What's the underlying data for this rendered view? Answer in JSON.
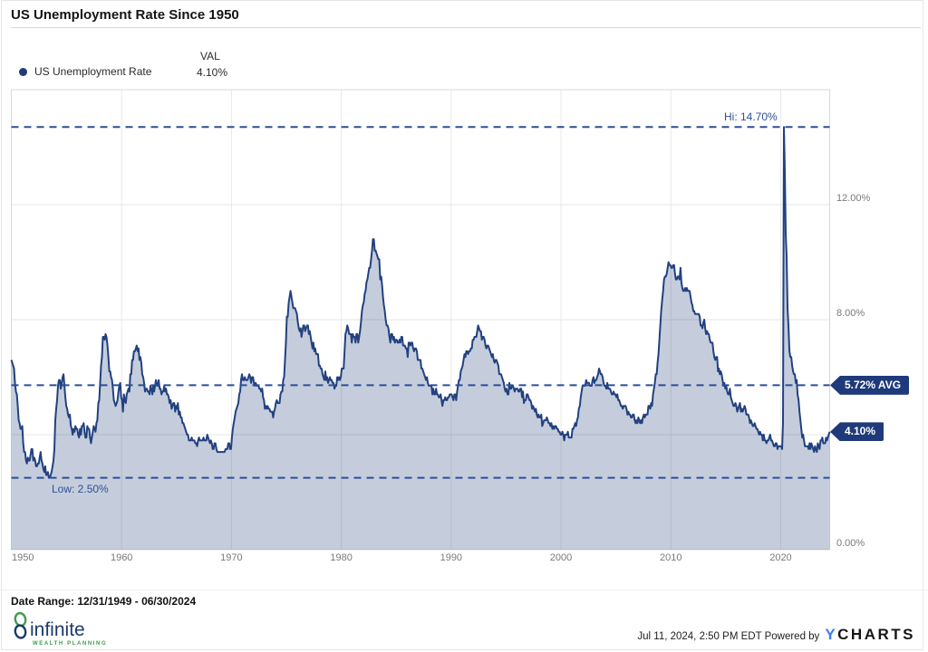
{
  "header": {
    "title": "US Unemployment Rate Since 1950"
  },
  "legend": {
    "series_label": "US Unemployment Rate",
    "val_header": "VAL",
    "val": "4.10%"
  },
  "chart_data": {
    "type": "area",
    "title": "US Unemployment Rate Since 1950",
    "series_name": "US Unemployment Rate",
    "unit": "percent",
    "x_domain": [
      1949.9583,
      2024.4583
    ],
    "ylim": [
      0,
      16
    ],
    "grid": true,
    "x_ticks": [
      1950,
      1960,
      1970,
      1980,
      1990,
      2000,
      2010,
      2020
    ],
    "x_tick_labels": [
      "1950",
      "1960",
      "1970",
      "1980",
      "1990",
      "2000",
      "2010",
      "2020"
    ],
    "y_gridlines": [
      4,
      8,
      12
    ],
    "y_ticks": [
      {
        "value": 0,
        "label": "0.00%"
      },
      {
        "value": 8,
        "label": "8.00%"
      },
      {
        "value": 12,
        "label": "12.00%"
      }
    ],
    "annotations": {
      "hi": {
        "label": "Hi: 14.70%",
        "value": 14.7
      },
      "low": {
        "label": "Low: 2.50%",
        "value": 2.5
      },
      "avg": {
        "label": "5.72% AVG",
        "value": 5.72
      },
      "last": {
        "label": "4.10%",
        "value": 4.1
      }
    },
    "colors": {
      "line": "#22417f",
      "fill": "rgba(30,60,125,0.26)",
      "dashed": "#2a4f97",
      "badge": "#1e3a7a",
      "grid": "#e5e5e5",
      "axis_text": "#7a7a7a"
    },
    "series_start": {
      "t": 1949.9583,
      "value": 6.6,
      "label": "12/31/1949"
    },
    "series_monthly": {
      "1950": [
        6.5,
        6.4,
        6.3,
        5.8,
        5.5,
        5.4,
        5.0,
        4.5,
        4.4,
        4.2,
        4.2,
        4.3
      ],
      "1951": [
        3.7,
        3.4,
        3.4,
        3.1,
        3.0,
        3.2,
        3.1,
        3.1,
        3.3,
        3.5,
        3.5,
        3.1
      ],
      "1952": [
        3.2,
        3.1,
        2.9,
        2.9,
        3.0,
        3.0,
        3.2,
        3.4,
        3.1,
        3.0,
        2.8,
        2.7
      ],
      "1953": [
        2.9,
        2.6,
        2.6,
        2.7,
        2.5,
        2.5,
        2.6,
        2.7,
        2.9,
        3.1,
        3.5,
        4.5
      ],
      "1954": [
        4.9,
        5.2,
        5.7,
        5.9,
        5.9,
        5.6,
        5.8,
        6.0,
        6.1,
        5.7,
        5.3,
        5.0
      ],
      "1955": [
        4.9,
        4.7,
        4.6,
        4.7,
        4.3,
        4.2,
        4.0,
        4.2,
        4.1,
        4.3,
        4.2,
        4.2
      ],
      "1956": [
        4.0,
        3.9,
        4.2,
        4.0,
        4.3,
        4.3,
        4.4,
        4.1,
        3.9,
        3.9,
        4.3,
        4.2
      ],
      "1957": [
        4.2,
        3.9,
        3.7,
        3.9,
        4.1,
        4.3,
        4.2,
        4.1,
        4.4,
        4.5,
        5.1,
        5.2
      ],
      "1958": [
        5.8,
        6.4,
        6.7,
        7.4,
        7.4,
        7.3,
        7.5,
        7.4,
        7.1,
        6.7,
        6.2,
        6.2
      ],
      "1959": [
        6.0,
        5.9,
        5.6,
        5.2,
        5.1,
        5.0,
        5.1,
        5.2,
        5.5,
        5.7,
        5.8,
        5.3
      ],
      "1960": [
        5.2,
        4.8,
        5.4,
        5.2,
        5.1,
        5.4,
        5.5,
        5.6,
        5.5,
        6.1,
        6.1,
        6.6
      ],
      "1961": [
        6.6,
        6.9,
        6.9,
        7.0,
        7.1,
        6.9,
        7.0,
        6.6,
        6.7,
        6.5,
        6.1,
        6.0
      ],
      "1962": [
        5.8,
        5.5,
        5.6,
        5.6,
        5.5,
        5.5,
        5.4,
        5.7,
        5.6,
        5.4,
        5.7,
        5.5
      ],
      "1963": [
        5.7,
        5.9,
        5.7,
        5.7,
        5.9,
        5.6,
        5.6,
        5.4,
        5.5,
        5.5,
        5.7,
        5.5
      ],
      "1964": [
        5.6,
        5.4,
        5.4,
        5.3,
        5.1,
        5.2,
        4.9,
        5.0,
        5.1,
        5.1,
        4.8,
        5.0
      ],
      "1965": [
        4.9,
        5.1,
        4.7,
        4.8,
        4.6,
        4.6,
        4.4,
        4.4,
        4.3,
        4.2,
        4.1,
        4.0
      ],
      "1966": [
        4.0,
        3.8,
        3.8,
        3.8,
        3.9,
        3.8,
        3.8,
        3.8,
        3.7,
        3.7,
        3.6,
        3.8
      ],
      "1967": [
        3.9,
        3.8,
        3.8,
        3.8,
        3.8,
        3.9,
        3.8,
        3.8,
        3.8,
        4.0,
        3.9,
        3.8
      ],
      "1968": [
        3.7,
        3.8,
        3.7,
        3.5,
        3.5,
        3.7,
        3.7,
        3.5,
        3.4,
        3.4,
        3.4,
        3.4
      ],
      "1969": [
        3.4,
        3.4,
        3.4,
        3.4,
        3.4,
        3.5,
        3.5,
        3.5,
        3.7,
        3.7,
        3.5,
        3.5
      ],
      "1970": [
        3.9,
        4.2,
        4.4,
        4.6,
        4.8,
        4.9,
        5.0,
        5.1,
        5.4,
        5.5,
        5.9,
        6.1
      ],
      "1971": [
        5.9,
        5.9,
        6.0,
        5.9,
        5.9,
        5.9,
        6.0,
        6.1,
        6.0,
        5.8,
        6.0,
        6.0
      ],
      "1972": [
        5.8,
        5.7,
        5.8,
        5.7,
        5.7,
        5.7,
        5.6,
        5.6,
        5.5,
        5.6,
        5.3,
        5.2
      ],
      "1973": [
        4.9,
        5.0,
        4.9,
        5.0,
        4.9,
        4.9,
        4.8,
        4.8,
        4.8,
        4.6,
        4.8,
        4.9
      ],
      "1974": [
        5.1,
        5.2,
        5.1,
        5.1,
        5.1,
        5.4,
        5.5,
        5.5,
        5.9,
        6.0,
        6.6,
        7.2
      ],
      "1975": [
        8.1,
        8.1,
        8.6,
        8.8,
        9.0,
        8.8,
        8.6,
        8.4,
        8.4,
        8.4,
        8.3,
        8.2
      ],
      "1976": [
        7.9,
        7.7,
        7.6,
        7.7,
        7.4,
        7.6,
        7.8,
        7.8,
        7.6,
        7.7,
        7.8,
        7.8
      ],
      "1977": [
        7.5,
        7.6,
        7.4,
        7.2,
        7.0,
        7.2,
        6.9,
        7.0,
        6.8,
        6.8,
        6.8,
        6.4
      ],
      "1978": [
        6.4,
        6.3,
        6.3,
        6.1,
        6.0,
        5.9,
        6.2,
        5.9,
        6.0,
        5.8,
        5.9,
        6.0
      ],
      "1979": [
        5.9,
        5.9,
        5.8,
        5.8,
        5.6,
        5.7,
        5.7,
        6.0,
        5.9,
        6.0,
        5.9,
        6.0
      ],
      "1980": [
        6.3,
        6.3,
        6.3,
        6.9,
        7.5,
        7.6,
        7.8,
        7.7,
        7.5,
        7.5,
        7.5,
        7.2
      ],
      "1981": [
        7.5,
        7.4,
        7.4,
        7.2,
        7.5,
        7.5,
        7.2,
        7.4,
        7.6,
        7.9,
        8.3,
        8.5
      ],
      "1982": [
        8.6,
        8.9,
        9.0,
        9.3,
        9.4,
        9.6,
        9.8,
        9.8,
        10.1,
        10.4,
        10.8,
        10.8
      ],
      "1983": [
        10.4,
        10.4,
        10.3,
        10.2,
        10.1,
        10.1,
        9.4,
        9.5,
        9.2,
        8.8,
        8.5,
        8.3
      ],
      "1984": [
        8.0,
        7.8,
        7.8,
        7.7,
        7.4,
        7.2,
        7.5,
        7.5,
        7.3,
        7.4,
        7.2,
        7.3
      ],
      "1985": [
        7.3,
        7.2,
        7.2,
        7.3,
        7.2,
        7.4,
        7.4,
        7.1,
        7.1,
        7.1,
        7.0,
        7.0
      ],
      "1986": [
        6.7,
        7.2,
        7.2,
        7.1,
        7.2,
        7.2,
        7.0,
        6.9,
        7.0,
        7.0,
        6.9,
        6.6
      ],
      "1987": [
        6.6,
        6.6,
        6.6,
        6.3,
        6.3,
        6.2,
        6.1,
        6.0,
        5.9,
        6.0,
        5.8,
        5.7
      ],
      "1988": [
        5.7,
        5.7,
        5.7,
        5.4,
        5.6,
        5.4,
        5.4,
        5.6,
        5.4,
        5.4,
        5.3,
        5.3
      ],
      "1989": [
        5.4,
        5.2,
        5.0,
        5.2,
        5.2,
        5.3,
        5.2,
        5.2,
        5.3,
        5.3,
        5.4,
        5.4
      ],
      "1990": [
        5.4,
        5.3,
        5.2,
        5.4,
        5.4,
        5.2,
        5.5,
        5.7,
        5.9,
        5.9,
        6.2,
        6.3
      ],
      "1991": [
        6.4,
        6.6,
        6.8,
        6.7,
        6.9,
        6.9,
        6.8,
        6.9,
        6.9,
        7.0,
        7.0,
        7.3
      ],
      "1992": [
        7.3,
        7.4,
        7.4,
        7.4,
        7.6,
        7.8,
        7.7,
        7.6,
        7.6,
        7.3,
        7.4,
        7.4
      ],
      "1993": [
        7.3,
        7.1,
        7.0,
        7.1,
        7.1,
        7.0,
        6.9,
        6.8,
        6.7,
        6.8,
        6.6,
        6.5
      ],
      "1994": [
        6.6,
        6.6,
        6.5,
        6.4,
        6.1,
        6.1,
        6.1,
        6.0,
        5.9,
        5.8,
        5.6,
        5.5
      ],
      "1995": [
        5.6,
        5.4,
        5.4,
        5.8,
        5.6,
        5.6,
        5.7,
        5.7,
        5.6,
        5.5,
        5.6,
        5.6
      ],
      "1996": [
        5.6,
        5.5,
        5.5,
        5.6,
        5.6,
        5.3,
        5.5,
        5.1,
        5.2,
        5.2,
        5.4,
        5.4
      ],
      "1997": [
        5.3,
        5.2,
        5.2,
        5.1,
        4.9,
        5.0,
        4.9,
        4.8,
        4.9,
        4.7,
        4.6,
        4.7
      ],
      "1998": [
        4.6,
        4.6,
        4.7,
        4.3,
        4.4,
        4.5,
        4.5,
        4.5,
        4.6,
        4.5,
        4.4,
        4.4
      ],
      "1999": [
        4.3,
        4.4,
        4.2,
        4.3,
        4.2,
        4.3,
        4.3,
        4.2,
        4.2,
        4.1,
        4.1,
        4.0
      ],
      "2000": [
        4.0,
        4.1,
        4.0,
        3.8,
        4.0,
        4.0,
        4.0,
        4.1,
        3.9,
        3.9,
        3.9,
        3.9
      ],
      "2001": [
        4.2,
        4.2,
        4.3,
        4.4,
        4.3,
        4.5,
        4.6,
        4.9,
        5.0,
        5.3,
        5.5,
        5.7
      ],
      "2002": [
        5.7,
        5.7,
        5.7,
        5.9,
        5.8,
        5.8,
        5.8,
        5.7,
        5.7,
        5.7,
        5.9,
        6.0
      ],
      "2003": [
        5.8,
        5.9,
        5.9,
        6.0,
        6.1,
        6.3,
        6.2,
        6.1,
        6.1,
        6.0,
        5.8,
        5.7
      ],
      "2004": [
        5.7,
        5.6,
        5.8,
        5.6,
        5.6,
        5.6,
        5.5,
        5.4,
        5.4,
        5.5,
        5.4,
        5.4
      ],
      "2005": [
        5.3,
        5.4,
        5.2,
        5.2,
        5.1,
        5.0,
        5.0,
        4.9,
        5.0,
        5.0,
        5.0,
        4.9
      ],
      "2006": [
        4.7,
        4.8,
        4.7,
        4.7,
        4.6,
        4.6,
        4.7,
        4.7,
        4.5,
        4.4,
        4.5,
        4.4
      ],
      "2007": [
        4.6,
        4.5,
        4.4,
        4.5,
        4.4,
        4.6,
        4.7,
        4.6,
        4.7,
        4.7,
        4.7,
        5.0
      ],
      "2008": [
        5.0,
        4.9,
        5.1,
        5.0,
        5.4,
        5.6,
        5.8,
        6.1,
        6.1,
        6.5,
        6.8,
        7.3
      ],
      "2009": [
        7.8,
        8.3,
        8.7,
        9.0,
        9.4,
        9.5,
        9.5,
        9.6,
        9.8,
        10.0,
        9.9,
        9.9
      ],
      "2010": [
        9.8,
        9.8,
        9.9,
        9.9,
        9.6,
        9.4,
        9.4,
        9.5,
        9.5,
        9.4,
        9.8,
        9.3
      ],
      "2011": [
        9.1,
        9.0,
        9.0,
        9.1,
        9.0,
        9.1,
        9.0,
        9.0,
        9.0,
        8.8,
        8.6,
        8.5
      ],
      "2012": [
        8.3,
        8.3,
        8.2,
        8.2,
        8.2,
        8.2,
        8.2,
        8.1,
        7.8,
        7.8,
        7.7,
        7.9
      ],
      "2013": [
        8.0,
        7.7,
        7.5,
        7.6,
        7.5,
        7.5,
        7.3,
        7.2,
        7.2,
        7.2,
        6.9,
        6.7
      ],
      "2014": [
        6.6,
        6.7,
        6.7,
        6.2,
        6.3,
        6.1,
        6.2,
        6.1,
        5.9,
        5.7,
        5.8,
        5.6
      ],
      "2015": [
        5.7,
        5.5,
        5.4,
        5.4,
        5.6,
        5.3,
        5.2,
        5.1,
        5.0,
        5.0,
        5.1,
        5.0
      ],
      "2016": [
        4.8,
        4.9,
        5.0,
        5.1,
        4.8,
        4.9,
        4.8,
        4.9,
        5.0,
        4.9,
        4.7,
        4.7
      ],
      "2017": [
        4.7,
        4.6,
        4.4,
        4.5,
        4.4,
        4.3,
        4.3,
        4.4,
        4.3,
        4.2,
        4.2,
        4.1
      ],
      "2018": [
        4.0,
        4.1,
        4.0,
        4.0,
        3.8,
        4.0,
        3.8,
        3.8,
        3.7,
        3.8,
        3.8,
        3.9
      ],
      "2019": [
        4.0,
        3.8,
        3.8,
        3.7,
        3.6,
        3.6,
        3.7,
        3.7,
        3.5,
        3.6,
        3.6,
        3.6
      ],
      "2020": [
        3.6,
        3.5,
        4.4,
        14.7,
        13.2,
        11.0,
        10.2,
        8.4,
        7.8,
        6.9,
        6.7,
        6.7
      ],
      "2021": [
        6.4,
        6.2,
        6.1,
        6.1,
        5.8,
        5.9,
        5.4,
        5.2,
        4.8,
        4.5,
        4.2,
        3.9
      ],
      "2022": [
        4.0,
        3.8,
        3.6,
        3.6,
        3.6,
        3.6,
        3.5,
        3.7,
        3.5,
        3.7,
        3.6,
        3.5
      ],
      "2023": [
        3.4,
        3.6,
        3.5,
        3.4,
        3.7,
        3.6,
        3.5,
        3.8,
        3.8,
        3.9,
        3.7,
        3.7
      ],
      "2024": [
        3.7,
        3.9,
        3.8,
        3.9,
        4.0,
        4.1
      ]
    }
  },
  "footer": {
    "date_range": "Date Range: 12/31/1949 - 06/30/2024",
    "logo_name": "infinite",
    "logo_subtitle": "WEALTH PLANNING",
    "timestamp": "Jul 11, 2024, 2:50 PM EDT Powered by",
    "ycharts_y": "Y",
    "ycharts_rest": "CHARTS"
  }
}
